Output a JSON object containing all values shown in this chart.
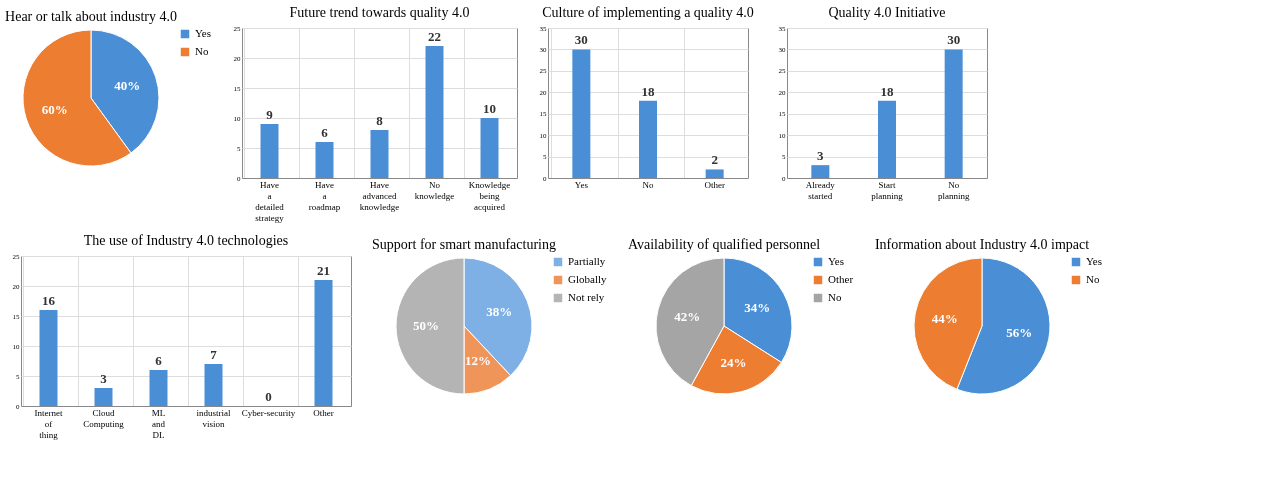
{
  "chart_data": [
    {
      "type": "pie",
      "title": "Hear or talk about industry 4.0",
      "categories": [
        "Yes",
        "No"
      ],
      "values": [
        40,
        60
      ],
      "colors": [
        "#4a8fd6",
        "#ed7d31"
      ],
      "value_labels": [
        "40%",
        "60%"
      ],
      "legend": "right"
    },
    {
      "type": "bar",
      "title": "Future trend towards quality 4.0",
      "categories": [
        "Have a detailed strategy",
        "Have a roadmap",
        "Have advanced knowledge",
        "No knowledge",
        "Knowledge being acquired"
      ],
      "values": [
        9,
        6,
        8,
        22,
        10
      ],
      "color": "#4a8fd6",
      "ylim": [
        0,
        25
      ],
      "yticks": [
        0,
        5,
        10,
        15,
        20,
        25
      ],
      "grid": true,
      "data_labels": true
    },
    {
      "type": "bar",
      "title": "Culture of implementing  a quality 4.0",
      "categories": [
        "Yes",
        "No",
        "Other"
      ],
      "values": [
        30,
        18,
        2
      ],
      "color": "#4a8fd6",
      "ylim": [
        0,
        35
      ],
      "yticks": [
        0,
        5,
        10,
        15,
        20,
        25,
        30,
        35
      ],
      "grid": true,
      "data_labels": true
    },
    {
      "type": "bar",
      "title": "Quality 4.0 Initiative",
      "categories": [
        "Already started",
        "Start planning",
        "No planning"
      ],
      "values": [
        3,
        18,
        30
      ],
      "color": "#4a8fd6",
      "ylim": [
        0,
        35
      ],
      "yticks": [
        0,
        5,
        10,
        15,
        20,
        25,
        30,
        35
      ],
      "grid": "y",
      "data_labels": true
    },
    {
      "type": "bar",
      "title": "The use of Industry 4.0 technologies",
      "categories": [
        "Internet of thing",
        "Cloud Computing",
        "ML and DL",
        "industrial vision",
        "Cyber-security",
        "Other"
      ],
      "values": [
        16,
        3,
        6,
        7,
        0,
        21
      ],
      "color": "#4a8fd6",
      "ylim": [
        0,
        25
      ],
      "yticks": [
        0,
        5,
        10,
        15,
        20,
        25
      ],
      "grid": true,
      "data_labels": true
    },
    {
      "type": "pie",
      "title": "Support for smart manufacturing",
      "categories": [
        "Partially",
        "Globally",
        "Not rely"
      ],
      "values": [
        38,
        12,
        50
      ],
      "colors": [
        "#7fb0e5",
        "#f0955a",
        "#b4b4b4"
      ],
      "value_labels": [
        "38%",
        "12%",
        "50%"
      ],
      "legend": "right"
    },
    {
      "type": "pie",
      "title": "Availability of qualified personnel",
      "categories": [
        "Yes",
        "Other",
        "No"
      ],
      "values": [
        34,
        24,
        42
      ],
      "colors": [
        "#4a8fd6",
        "#ed7d31",
        "#a5a5a5"
      ],
      "value_labels": [
        "34%",
        "24%",
        "42%"
      ],
      "legend": "right"
    },
    {
      "type": "pie",
      "title": "Information about Industry 4.0 impact",
      "categories": [
        "Yes",
        "No"
      ],
      "values": [
        56,
        44
      ],
      "colors": [
        "#4a8fd6",
        "#ed7d31"
      ],
      "value_labels": [
        "56%",
        "44%"
      ],
      "legend": "right"
    }
  ]
}
